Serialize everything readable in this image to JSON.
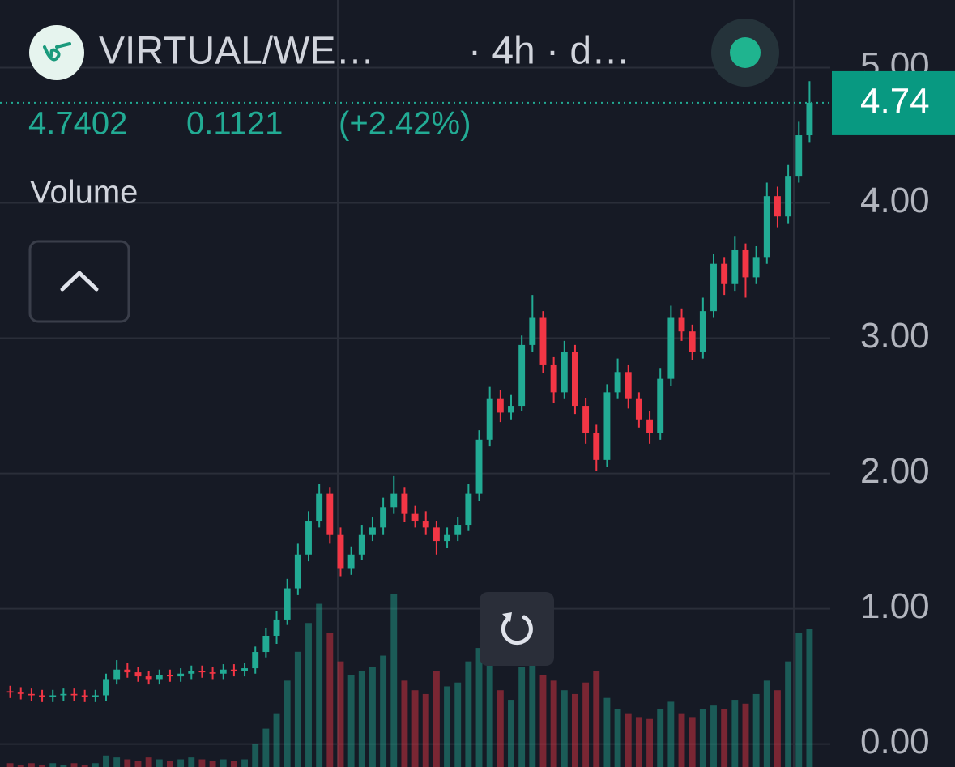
{
  "chart_data": {
    "type": "candlestick",
    "title": "VIRTUAL/WE…",
    "interval": "· 4h · d…",
    "last": 4.7402,
    "change": 0.1121,
    "change_pct": {
      "value": 2.42,
      "label": "(+2.42%)"
    },
    "volume_title": "Volume",
    "up_color": "#22ab94",
    "down_color": "#f23645",
    "ylim": [
      -0.17,
      5.5
    ],
    "yticks": [
      {
        "value": 0,
        "label": "0.00"
      },
      {
        "value": 1,
        "label": "1.00"
      },
      {
        "value": 2,
        "label": "2.00"
      },
      {
        "value": 3,
        "label": "3.00"
      },
      {
        "value": 4,
        "label": "4.00"
      },
      {
        "value": 5,
        "label": "5.00"
      }
    ],
    "grid": true,
    "price_tag": 4.74,
    "ohlc": [
      [
        0.39,
        0.43,
        0.34,
        0.38
      ],
      [
        0.38,
        0.42,
        0.33,
        0.37
      ],
      [
        0.37,
        0.41,
        0.32,
        0.36
      ],
      [
        0.36,
        0.4,
        0.31,
        0.35
      ],
      [
        0.35,
        0.4,
        0.31,
        0.36
      ],
      [
        0.36,
        0.41,
        0.32,
        0.37
      ],
      [
        0.37,
        0.41,
        0.32,
        0.36
      ],
      [
        0.36,
        0.4,
        0.31,
        0.35
      ],
      [
        0.35,
        0.4,
        0.31,
        0.36
      ],
      [
        0.36,
        0.52,
        0.32,
        0.48
      ],
      [
        0.48,
        0.62,
        0.44,
        0.55
      ],
      [
        0.55,
        0.6,
        0.49,
        0.53
      ],
      [
        0.53,
        0.57,
        0.46,
        0.5
      ],
      [
        0.5,
        0.54,
        0.44,
        0.48
      ],
      [
        0.48,
        0.55,
        0.44,
        0.51
      ],
      [
        0.51,
        0.55,
        0.46,
        0.5
      ],
      [
        0.5,
        0.56,
        0.46,
        0.52
      ],
      [
        0.52,
        0.58,
        0.48,
        0.54
      ],
      [
        0.54,
        0.58,
        0.49,
        0.53
      ],
      [
        0.53,
        0.57,
        0.48,
        0.52
      ],
      [
        0.52,
        0.59,
        0.48,
        0.55
      ],
      [
        0.55,
        0.59,
        0.5,
        0.54
      ],
      [
        0.54,
        0.6,
        0.5,
        0.56
      ],
      [
        0.56,
        0.72,
        0.52,
        0.68
      ],
      [
        0.68,
        0.86,
        0.64,
        0.8
      ],
      [
        0.8,
        0.98,
        0.74,
        0.92
      ],
      [
        0.92,
        1.22,
        0.88,
        1.15
      ],
      [
        1.15,
        1.48,
        1.1,
        1.4
      ],
      [
        1.4,
        1.72,
        1.35,
        1.65
      ],
      [
        1.65,
        1.92,
        1.6,
        1.85
      ],
      [
        1.85,
        1.9,
        1.48,
        1.55
      ],
      [
        1.55,
        1.6,
        1.24,
        1.3
      ],
      [
        1.3,
        1.46,
        1.25,
        1.4
      ],
      [
        1.4,
        1.62,
        1.36,
        1.55
      ],
      [
        1.55,
        1.68,
        1.5,
        1.6
      ],
      [
        1.6,
        1.82,
        1.55,
        1.75
      ],
      [
        1.75,
        1.98,
        1.7,
        1.85
      ],
      [
        1.85,
        1.9,
        1.64,
        1.7
      ],
      [
        1.7,
        1.76,
        1.6,
        1.65
      ],
      [
        1.65,
        1.72,
        1.55,
        1.6
      ],
      [
        1.6,
        1.65,
        1.4,
        1.5
      ],
      [
        1.5,
        1.6,
        1.45,
        1.55
      ],
      [
        1.55,
        1.68,
        1.5,
        1.62
      ],
      [
        1.62,
        1.92,
        1.58,
        1.85
      ],
      [
        1.85,
        2.32,
        1.8,
        2.25
      ],
      [
        2.25,
        2.64,
        2.2,
        2.55
      ],
      [
        2.55,
        2.62,
        2.38,
        2.45
      ],
      [
        2.45,
        2.58,
        2.4,
        2.5
      ],
      [
        2.5,
        3.02,
        2.46,
        2.95
      ],
      [
        2.95,
        3.32,
        2.9,
        3.15
      ],
      [
        3.15,
        3.2,
        2.74,
        2.8
      ],
      [
        2.8,
        2.86,
        2.52,
        2.6
      ],
      [
        2.6,
        2.98,
        2.55,
        2.9
      ],
      [
        2.9,
        2.95,
        2.44,
        2.5
      ],
      [
        2.5,
        2.56,
        2.22,
        2.3
      ],
      [
        2.3,
        2.36,
        2.02,
        2.1
      ],
      [
        2.1,
        2.66,
        2.05,
        2.6
      ],
      [
        2.6,
        2.85,
        2.55,
        2.75
      ],
      [
        2.75,
        2.8,
        2.48,
        2.55
      ],
      [
        2.55,
        2.6,
        2.34,
        2.4
      ],
      [
        2.4,
        2.46,
        2.22,
        2.3
      ],
      [
        2.3,
        2.78,
        2.25,
        2.7
      ],
      [
        2.7,
        3.24,
        2.65,
        3.15
      ],
      [
        3.15,
        3.22,
        2.98,
        3.05
      ],
      [
        3.05,
        3.1,
        2.84,
        2.9
      ],
      [
        2.9,
        3.3,
        2.85,
        3.2
      ],
      [
        3.2,
        3.62,
        3.15,
        3.55
      ],
      [
        3.55,
        3.6,
        3.32,
        3.4
      ],
      [
        3.4,
        3.75,
        3.35,
        3.65
      ],
      [
        3.65,
        3.7,
        3.3,
        3.45
      ],
      [
        3.45,
        3.68,
        3.4,
        3.6
      ],
      [
        3.6,
        4.15,
        3.55,
        4.05
      ],
      [
        4.05,
        4.12,
        3.82,
        3.9
      ],
      [
        3.9,
        4.28,
        3.85,
        4.2
      ],
      [
        4.2,
        4.6,
        4.15,
        4.5
      ],
      [
        4.5,
        4.9,
        4.45,
        4.74
      ]
    ],
    "volume": [
      2,
      1,
      2,
      1,
      2,
      1,
      2,
      1,
      2,
      6,
      5,
      4,
      3,
      5,
      4,
      3,
      4,
      5,
      4,
      3,
      4,
      3,
      4,
      12,
      20,
      28,
      45,
      60,
      75,
      85,
      70,
      55,
      48,
      50,
      52,
      58,
      90,
      45,
      40,
      38,
      50,
      42,
      44,
      55,
      62,
      70,
      40,
      35,
      52,
      60,
      48,
      45,
      40,
      38,
      44,
      50,
      36,
      30,
      28,
      26,
      25,
      30,
      34,
      28,
      26,
      30,
      32,
      30,
      35,
      33,
      38,
      45,
      40,
      55,
      70,
      72
    ],
    "volume_ylim": [
      0,
      100
    ]
  }
}
